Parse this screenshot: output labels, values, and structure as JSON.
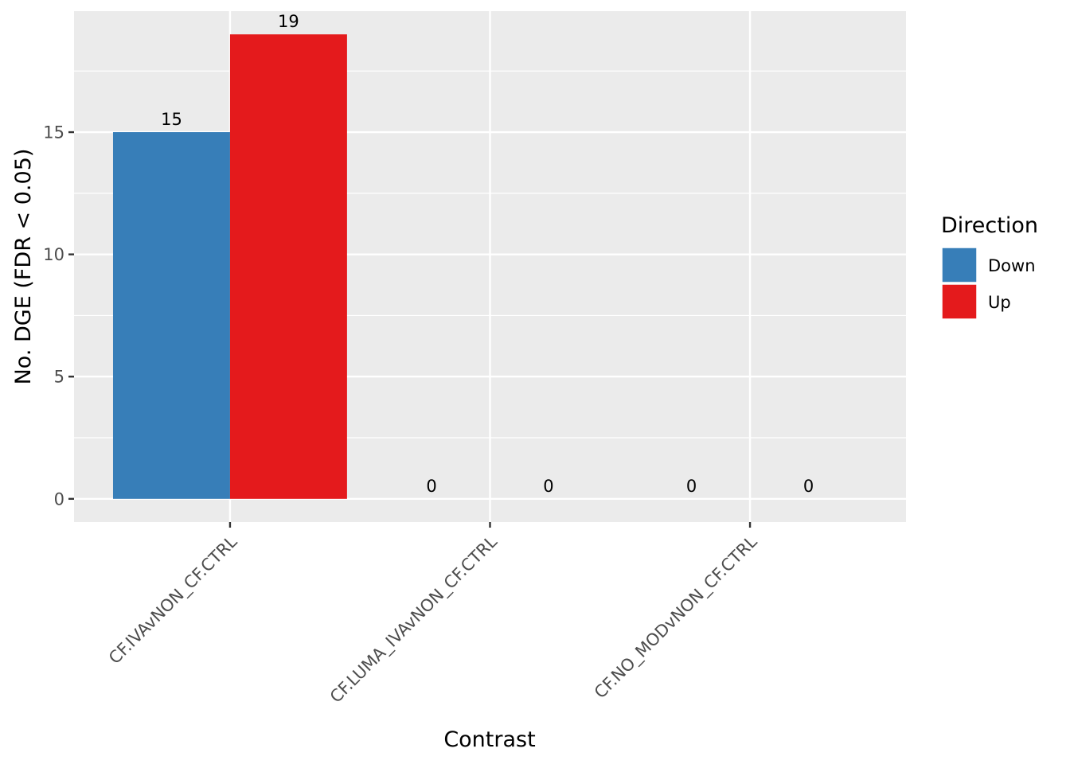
{
  "chart_data": {
    "type": "bar",
    "categories": [
      "CF.IVAvNON_CF.CTRL",
      "CF.LUMA_IVAvNON_CF.CTRL",
      "CF.NO_MODvNON_CF.CTRL"
    ],
    "series": [
      {
        "name": "Down",
        "values": [
          15,
          0,
          0
        ],
        "color": "#377eb8"
      },
      {
        "name": "Up",
        "values": [
          19,
          0,
          0
        ],
        "color": "#e41a1c"
      }
    ],
    "xlabel": "Contrast",
    "ylabel": "No. DGE (FDR < 0.05)",
    "ylim": [
      -0.95,
      19.95
    ],
    "yticks": [
      0,
      5,
      10,
      15
    ],
    "legend": {
      "title": "Direction",
      "position": "right"
    },
    "grid": true,
    "colors": {
      "panel": "#ebebeb",
      "grid": "#ffffff",
      "tick": "#333333"
    }
  }
}
